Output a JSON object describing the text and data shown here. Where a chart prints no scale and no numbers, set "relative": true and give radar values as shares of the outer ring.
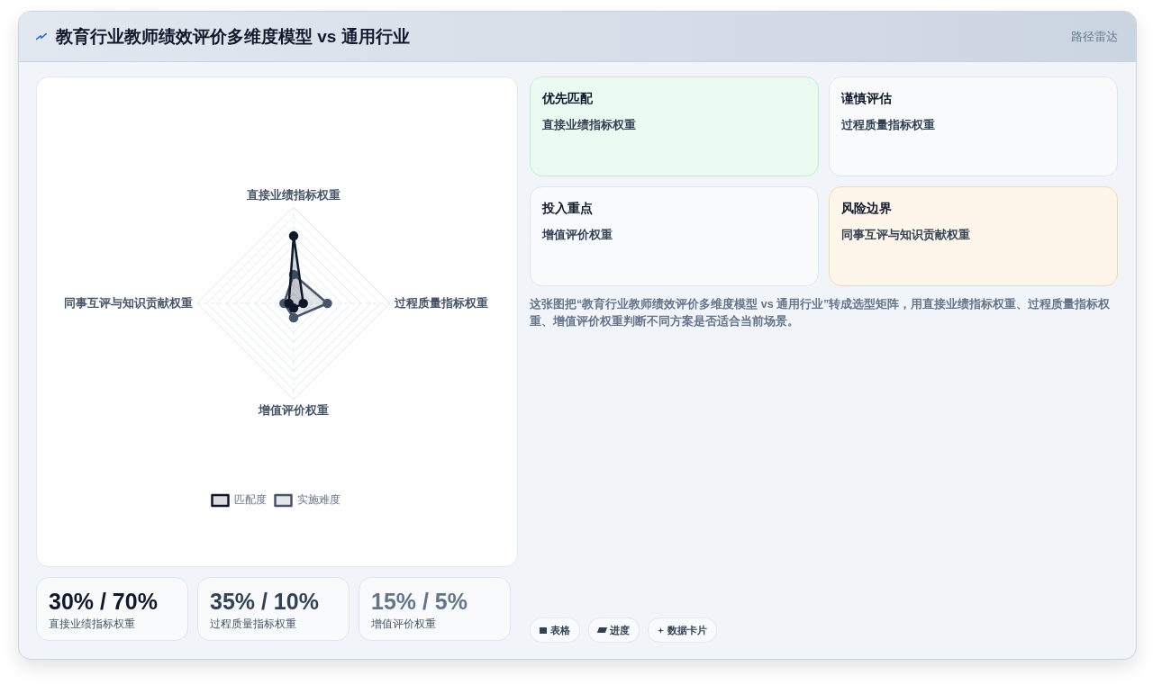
{
  "chart_data": [
    {
      "type": "radar",
      "title": "教育行业教师绩效评价多维度模型 vs 通用行业",
      "categories": [
        "直接业绩指标权重",
        "过程质量指标权重",
        "增值评价权重",
        "同事互评与知识贡献权重"
      ],
      "relative": true,
      "series": [
        {
          "name": "匹配度",
          "color": "#0f172a",
          "values": [
            0.7,
            0.1,
            0.05,
            0.05
          ]
        },
        {
          "name": "实施难度",
          "color": "#475569",
          "values": [
            0.3,
            0.35,
            0.15,
            0.1
          ]
        }
      ],
      "grid": true,
      "legend": "bottom",
      "marker": "circle",
      "annotations": [
        "30% / 70%",
        "直接业绩指标权重",
        "35% / 10%",
        "过程质量指标权重",
        "15% / 5%",
        "增值评价权重"
      ]
    },
    {
      "type": "other",
      "title": "路径雷达",
      "annotations": [
        "优先匹配",
        "直接业绩指标权重",
        "谨慎评估",
        "过程质量指标权重",
        "投入重点",
        "增值评价权重",
        "风险边界",
        "同事互评与知识贡献权重",
        "这张图把“教育行业教师绩效评价多维度模型 vs 通用行业”转成选型矩阵，用直接业绩指标权重、过程质量指标权重、增值评价权重判断不同方案是否适合当前场景。",
        "表格",
        "进度",
        "数据卡片"
      ]
    }
  ]
}
